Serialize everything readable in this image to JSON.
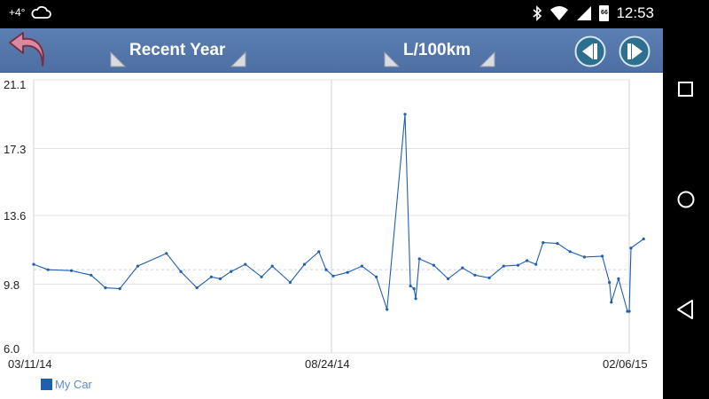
{
  "status_bar": {
    "temperature": "+4°",
    "time": "12:53",
    "battery_level": "66",
    "icons": [
      "cloud-icon",
      "bluetooth-icon",
      "wifi-icon",
      "signal-icon",
      "battery-icon"
    ]
  },
  "app_bar": {
    "period_selector": "Recent Year",
    "unit_selector": "L/100km",
    "bar_color": "#5576aa"
  },
  "nav_bar": {
    "icons": [
      "recents-icon",
      "home-icon",
      "back-icon"
    ]
  },
  "chart_data": {
    "type": "line",
    "x_labels": [
      "03/11/14",
      "08/24/14",
      "02/06/15"
    ],
    "y_ticks": [
      "21.1",
      "17.3",
      "13.6",
      "9.8",
      "6.0"
    ],
    "ylim": [
      6.0,
      21.1
    ],
    "xlim": [
      "2014-03-11",
      "2015-02-06"
    ],
    "average_line": 10.6,
    "grid": "vertical line at 08/24/14, horizontal dashed average",
    "series": [
      {
        "name": "My Car",
        "color": "#1f5fb0",
        "points": [
          [
            "2014-03-11",
            10.9
          ],
          [
            "2014-03-19",
            10.6
          ],
          [
            "2014-04-01",
            10.55
          ],
          [
            "2014-04-12",
            10.3
          ],
          [
            "2014-04-20",
            9.6
          ],
          [
            "2014-04-28",
            9.55
          ],
          [
            "2014-05-08",
            10.8
          ],
          [
            "2014-05-24",
            11.5
          ],
          [
            "2014-06-01",
            10.5
          ],
          [
            "2014-06-10",
            9.6
          ],
          [
            "2014-06-18",
            10.2
          ],
          [
            "2014-06-23",
            10.1
          ],
          [
            "2014-06-29",
            10.5
          ],
          [
            "2014-07-07",
            10.9
          ],
          [
            "2014-07-16",
            10.2
          ],
          [
            "2014-07-22",
            10.8
          ],
          [
            "2014-08-01",
            9.9
          ],
          [
            "2014-08-09",
            10.9
          ],
          [
            "2014-08-17",
            11.6
          ],
          [
            "2014-08-21",
            10.6
          ],
          [
            "2014-08-25",
            10.25
          ],
          [
            "2014-09-02",
            10.45
          ],
          [
            "2014-09-10",
            10.8
          ],
          [
            "2014-09-18",
            10.2
          ],
          [
            "2014-09-24",
            8.4
          ],
          [
            "2014-10-04",
            19.2
          ],
          [
            "2014-10-07",
            9.7
          ],
          [
            "2014-10-09",
            9.55
          ],
          [
            "2014-10-10",
            9.0
          ],
          [
            "2014-10-12",
            11.2
          ],
          [
            "2014-10-20",
            10.85
          ],
          [
            "2014-10-28",
            10.1
          ],
          [
            "2014-11-05",
            10.7
          ],
          [
            "2014-11-12",
            10.3
          ],
          [
            "2014-11-20",
            10.15
          ],
          [
            "2014-11-28",
            10.8
          ],
          [
            "2014-12-06",
            10.85
          ],
          [
            "2014-12-11",
            11.1
          ],
          [
            "2014-12-16",
            10.9
          ],
          [
            "2014-12-20",
            12.1
          ],
          [
            "2014-12-28",
            12.05
          ],
          [
            "2015-01-04",
            11.6
          ],
          [
            "2015-01-12",
            11.3
          ],
          [
            "2015-01-22",
            11.35
          ],
          [
            "2015-01-26",
            9.9
          ],
          [
            "2015-01-27",
            8.8
          ],
          [
            "2015-01-31",
            10.1
          ],
          [
            "2015-02-05",
            8.3
          ],
          [
            "2015-02-06",
            8.3
          ],
          [
            "2015-02-07",
            11.8
          ],
          [
            "2015-02-14",
            12.3
          ]
        ]
      }
    ],
    "legend_position": "bottom-left"
  }
}
